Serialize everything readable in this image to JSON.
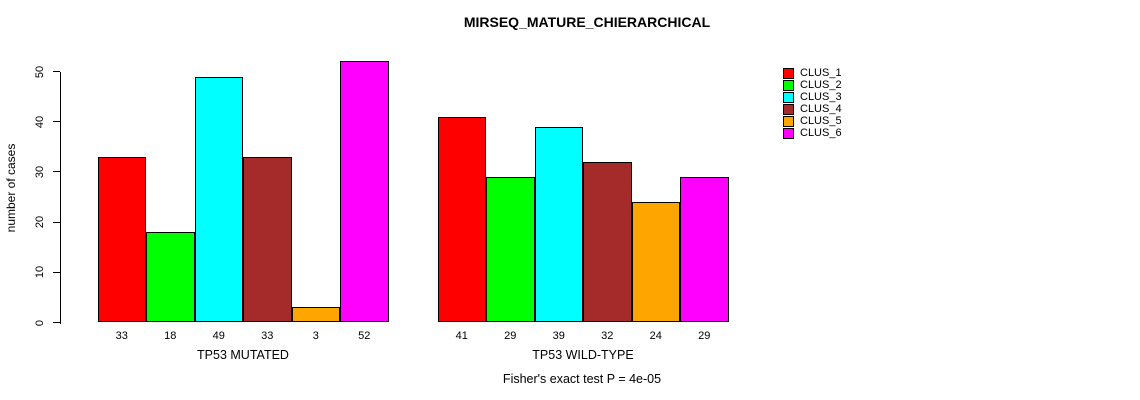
{
  "chart_data": {
    "type": "bar",
    "title": "MIRSEQ_MATURE_CHIERARCHICAL",
    "ylabel": "number of cases",
    "xlabel": "",
    "ylim": [
      0,
      52
    ],
    "yticks": [
      0,
      10,
      20,
      30,
      40,
      50
    ],
    "grid": false,
    "legend_position": "right",
    "categories": [
      "TP53 MUTATED",
      "TP53 WILD-TYPE"
    ],
    "series": [
      {
        "name": "CLUS_1",
        "color": "#FF0000",
        "values": [
          33,
          41
        ]
      },
      {
        "name": "CLUS_2",
        "color": "#00FF00",
        "values": [
          18,
          29
        ]
      },
      {
        "name": "CLUS_3",
        "color": "#00FFFF",
        "values": [
          49,
          39
        ]
      },
      {
        "name": "CLUS_4",
        "color": "#A52A2A",
        "values": [
          33,
          32
        ]
      },
      {
        "name": "CLUS_5",
        "color": "#FFA500",
        "values": [
          3,
          24
        ]
      },
      {
        "name": "CLUS_6",
        "color": "#FF00FF",
        "values": [
          52,
          29
        ]
      }
    ],
    "bar_value_labels": true,
    "annotation": "Fisher's exact test P = 4e-05",
    "bar_outline_color": "#000000",
    "background_color": "#FFFFFF"
  }
}
